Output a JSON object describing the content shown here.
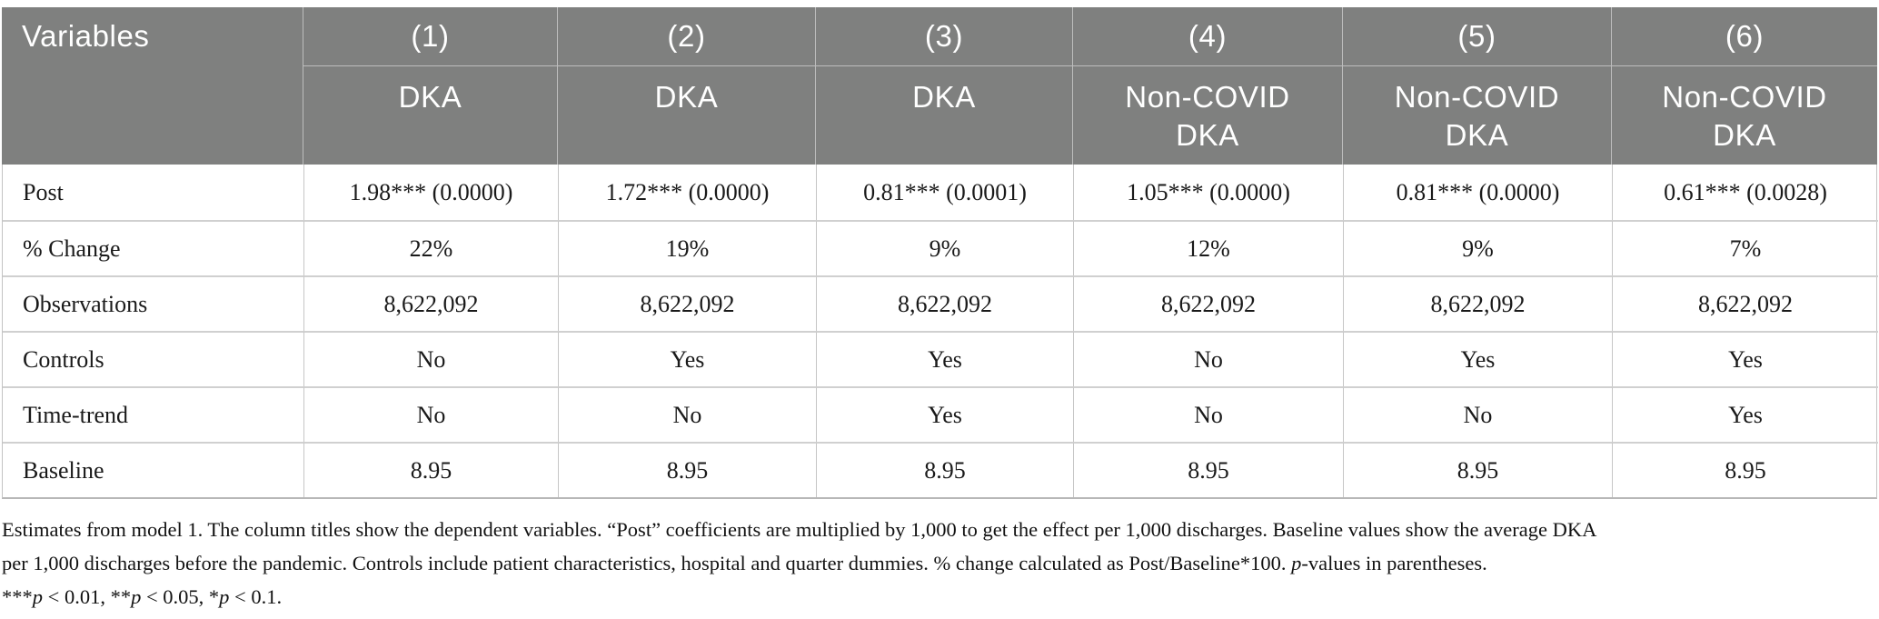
{
  "table": {
    "corner_label": "Variables",
    "columns": [
      {
        "number": "(1)",
        "dep_var": "DKA"
      },
      {
        "number": "(2)",
        "dep_var": "DKA"
      },
      {
        "number": "(3)",
        "dep_var": "DKA"
      },
      {
        "number": "(4)",
        "dep_var": "Non-COVID DKA"
      },
      {
        "number": "(5)",
        "dep_var": "Non-COVID DKA"
      },
      {
        "number": "(6)",
        "dep_var": "Non-COVID DKA"
      }
    ],
    "rows": [
      {
        "label": "Post",
        "values": [
          "1.98*** (0.0000)",
          "1.72*** (0.0000)",
          "0.81*** (0.0001)",
          "1.05*** (0.0000)",
          "0.81*** (0.0000)",
          "0.61*** (0.0028)"
        ]
      },
      {
        "label": "% Change",
        "values": [
          "22%",
          "19%",
          "9%",
          "12%",
          "9%",
          "7%"
        ]
      },
      {
        "label": "Observations",
        "values": [
          "8,622,092",
          "8,622,092",
          "8,622,092",
          "8,622,092",
          "8,622,092",
          "8,622,092"
        ]
      },
      {
        "label": "Controls",
        "values": [
          "No",
          "Yes",
          "Yes",
          "No",
          "Yes",
          "Yes"
        ]
      },
      {
        "label": "Time-trend",
        "values": [
          "No",
          "No",
          "Yes",
          "No",
          "No",
          "Yes"
        ]
      },
      {
        "label": "Baseline",
        "values": [
          "8.95",
          "8.95",
          "8.95",
          "8.95",
          "8.95",
          "8.95"
        ]
      }
    ]
  },
  "footnote": {
    "lines": [
      [
        {
          "text": "Estimates from model 1. The column titles show the dependent variables. “Post” coefficients are multiplied by 1,000 to get the effect per 1,000 discharges. Baseline values show the average DKA"
        }
      ],
      [
        {
          "text": "per 1,000 discharges before the pandemic. Controls include patient characteristics, hospital and quarter dummies. % change calculated as Post/Baseline*100. "
        },
        {
          "text": "p",
          "italic": true
        },
        {
          "text": "-values in parentheses."
        }
      ],
      [
        {
          "text": "***"
        },
        {
          "text": "p",
          "italic": true
        },
        {
          "text": " < 0.01, **"
        },
        {
          "text": "p",
          "italic": true
        },
        {
          "text": " < 0.05, *"
        },
        {
          "text": "p",
          "italic": true
        },
        {
          "text": " < 0.1."
        }
      ]
    ]
  },
  "colors": {
    "header_bg": "#7f807f",
    "header_text": "#ffffff",
    "border": "#c6c6c6",
    "body_text": "#1a1a1a"
  }
}
